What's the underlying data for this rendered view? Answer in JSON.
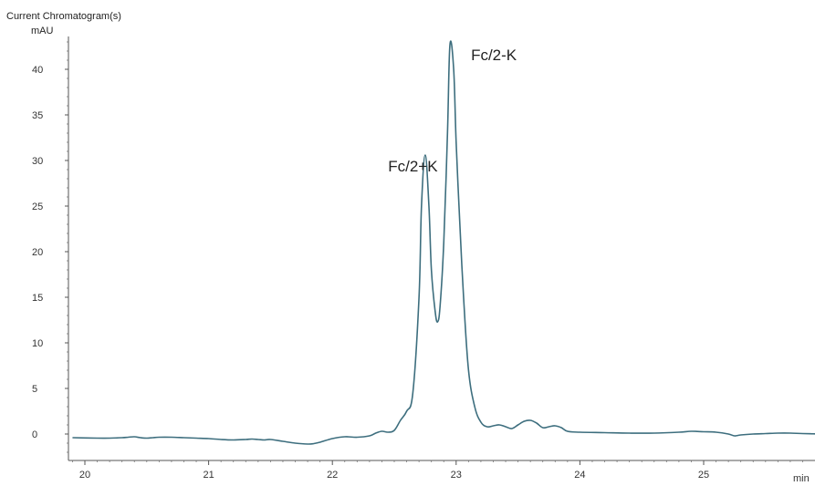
{
  "chart_data": {
    "type": "line",
    "title": "Current Chromatogram(s)",
    "ylabel": "mAU",
    "xlabel": "min",
    "xlim": [
      19.9,
      25.95
    ],
    "ylim": [
      -3,
      46
    ],
    "x_ticks": [
      "20",
      "21",
      "22",
      "23",
      "24",
      "25"
    ],
    "y_ticks": [
      "0",
      "5",
      "10",
      "15",
      "20",
      "25",
      "30",
      "35",
      "40"
    ],
    "grid": false,
    "line_color": "#3d6e7e",
    "series": [
      {
        "x": [
          19.9,
          20.1,
          20.2,
          20.3,
          20.35,
          20.4,
          20.45,
          20.5,
          20.55,
          20.6,
          20.7,
          20.8,
          20.9,
          21.0,
          21.1,
          21.2,
          21.3,
          21.35,
          21.4,
          21.45,
          21.5,
          21.6,
          21.7,
          21.8,
          21.85,
          21.9,
          22.0,
          22.1,
          22.2,
          22.3,
          22.35,
          22.4,
          22.45,
          22.5,
          22.55,
          22.6,
          22.65,
          22.7,
          22.72,
          22.75,
          22.78,
          22.8,
          22.83,
          22.85,
          22.87,
          22.9,
          22.93,
          22.95,
          22.98,
          23.0,
          23.03,
          23.06,
          23.1,
          23.15,
          23.2,
          23.25,
          23.3,
          23.35,
          23.4,
          23.45,
          23.5,
          23.55,
          23.6,
          23.65,
          23.7,
          23.75,
          23.8,
          23.85,
          23.9,
          24.0,
          24.2,
          24.4,
          24.6,
          24.8,
          24.9,
          25.0,
          25.1,
          25.2,
          25.25,
          25.3,
          25.4,
          25.5,
          25.6,
          25.7,
          25.8,
          25.95
        ],
        "y": [
          -0.4,
          -0.45,
          -0.45,
          -0.4,
          -0.35,
          -0.3,
          -0.4,
          -0.45,
          -0.4,
          -0.35,
          -0.35,
          -0.4,
          -0.45,
          -0.5,
          -0.6,
          -0.65,
          -0.6,
          -0.55,
          -0.6,
          -0.65,
          -0.6,
          -0.8,
          -1.0,
          -1.1,
          -1.05,
          -0.9,
          -0.5,
          -0.3,
          -0.35,
          -0.2,
          0.1,
          0.3,
          0.2,
          0.4,
          1.5,
          2.5,
          4.5,
          15.0,
          25.0,
          30.6,
          25.0,
          18.0,
          13.5,
          12.3,
          14.0,
          21.0,
          33.0,
          42.7,
          40.0,
          32.0,
          23.0,
          15.0,
          7.0,
          3.0,
          1.3,
          0.8,
          0.9,
          1.0,
          0.8,
          0.6,
          1.0,
          1.4,
          1.5,
          1.2,
          0.7,
          0.8,
          0.9,
          0.7,
          0.3,
          0.2,
          0.15,
          0.1,
          0.1,
          0.2,
          0.3,
          0.25,
          0.2,
          0.0,
          -0.2,
          -0.1,
          0.0,
          0.05,
          0.1,
          0.1,
          0.05,
          0.0
        ]
      }
    ],
    "annotations": [
      {
        "text": "Fc/2+K",
        "x": 22.45,
        "y": 28.8
      },
      {
        "text": "Fc/2-K",
        "x": 23.12,
        "y": 41.0
      }
    ]
  }
}
